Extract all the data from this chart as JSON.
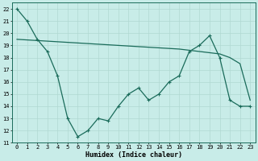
{
  "x": [
    0,
    1,
    2,
    3,
    4,
    5,
    6,
    7,
    8,
    9,
    10,
    11,
    12,
    13,
    14,
    15,
    16,
    17,
    18,
    19,
    20,
    21,
    22,
    23
  ],
  "y_main": [
    22,
    21,
    19.5,
    18.5,
    16.5,
    13,
    11.5,
    12,
    13,
    12.8,
    14,
    15,
    15.5,
    14.5,
    15,
    16,
    16.5,
    18.5,
    19,
    19.8,
    18,
    14.5,
    14,
    14
  ],
  "y_trend": [
    19.5,
    19.45,
    19.4,
    19.35,
    19.3,
    19.25,
    19.2,
    19.15,
    19.1,
    19.05,
    19.0,
    18.95,
    18.9,
    18.85,
    18.8,
    18.75,
    18.7,
    18.6,
    18.5,
    18.4,
    18.3,
    18.0,
    17.5,
    14.5
  ],
  "line_color": "#1a6b5a",
  "trend_color": "#1a6b5a",
  "bg_color": "#c8ece8",
  "grid_color": "#b0d8d2",
  "xlabel": "Humidex (Indice chaleur)",
  "ylim": [
    11,
    22.5
  ],
  "xlim": [
    -0.5,
    23.5
  ],
  "yticks": [
    11,
    12,
    13,
    14,
    15,
    16,
    17,
    18,
    19,
    20,
    21,
    22
  ],
  "xticks": [
    0,
    1,
    2,
    3,
    4,
    5,
    6,
    7,
    8,
    9,
    10,
    11,
    12,
    13,
    14,
    15,
    16,
    17,
    18,
    19,
    20,
    21,
    22,
    23
  ],
  "marker_size": 2.5,
  "line_width": 0.9,
  "tick_fontsize": 5,
  "xlabel_fontsize": 6
}
